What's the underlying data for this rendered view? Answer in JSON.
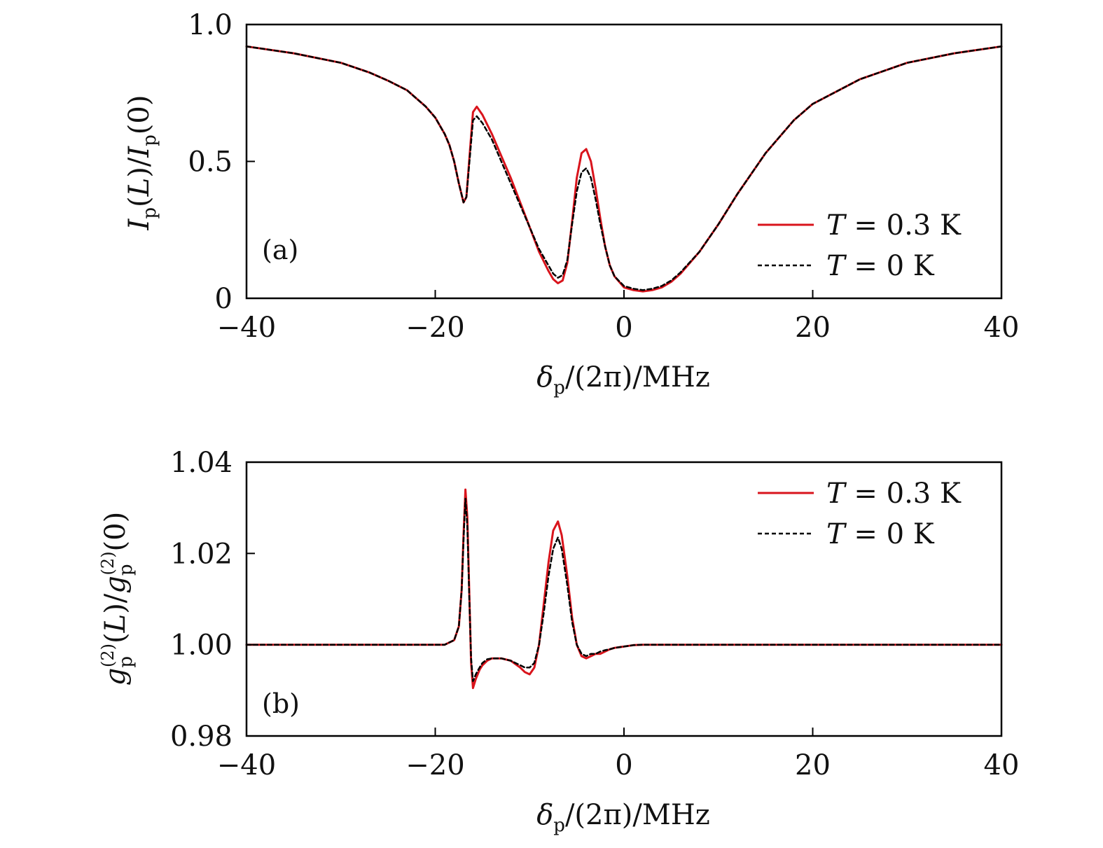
{
  "colors": {
    "hot": "#d9141c",
    "cold": "#000000",
    "axis": "#000000"
  },
  "chart_data": [
    {
      "type": "line",
      "panel_label": "(a)",
      "xlabel": "δp/(2π)/MHz",
      "ylabel": "Ip(L)/Ip(0)",
      "xlim": [
        -40,
        40
      ],
      "ylim": [
        0,
        1.0
      ],
      "xticks": [
        -40,
        -20,
        0,
        20,
        40
      ],
      "xtick_labels": [
        "−40",
        "−20",
        "0",
        "20",
        "40"
      ],
      "yticks": [
        0,
        0.5,
        1.0
      ],
      "ytick_labels": [
        "0",
        "0.5",
        "1.0"
      ],
      "legend": {
        "position": "lower-right",
        "entries": [
          "T = 0.3 K",
          "T = 0 K"
        ]
      },
      "series": [
        {
          "name": "T = 0.3 K",
          "color": "#d9141c",
          "dash": "solid",
          "x": [
            -40,
            -35,
            -30,
            -27,
            -25,
            -23,
            -21,
            -20,
            -19,
            -18.5,
            -18,
            -17.5,
            -17,
            -16.7,
            -16.3,
            -16,
            -15.6,
            -15,
            -14,
            -13,
            -12,
            -11,
            -10,
            -9,
            -8,
            -7.5,
            -7,
            -6.5,
            -6,
            -5.5,
            -5,
            -4.5,
            -4,
            -3.5,
            -3,
            -2.5,
            -2,
            -1.5,
            -1,
            0,
            1,
            2,
            3,
            4,
            5,
            6,
            8,
            10,
            12,
            15,
            18,
            20,
            25,
            30,
            35,
            40
          ],
          "y": [
            0.92,
            0.895,
            0.86,
            0.825,
            0.795,
            0.76,
            0.7,
            0.66,
            0.6,
            0.56,
            0.5,
            0.42,
            0.35,
            0.37,
            0.55,
            0.68,
            0.7,
            0.67,
            0.6,
            0.52,
            0.44,
            0.35,
            0.26,
            0.17,
            0.1,
            0.07,
            0.055,
            0.065,
            0.13,
            0.28,
            0.44,
            0.53,
            0.545,
            0.5,
            0.4,
            0.29,
            0.19,
            0.12,
            0.08,
            0.04,
            0.03,
            0.025,
            0.03,
            0.04,
            0.06,
            0.09,
            0.17,
            0.27,
            0.38,
            0.53,
            0.65,
            0.71,
            0.8,
            0.86,
            0.895,
            0.92
          ]
        },
        {
          "name": "T = 0 K",
          "color": "#000000",
          "dash": "dashed",
          "x": [
            -40,
            -35,
            -30,
            -27,
            -25,
            -23,
            -21,
            -20,
            -19,
            -18.5,
            -18,
            -17.5,
            -17,
            -16.7,
            -16.3,
            -16,
            -15.6,
            -15,
            -14,
            -13,
            -12,
            -11,
            -10,
            -9,
            -8,
            -7.5,
            -7,
            -6.5,
            -6,
            -5.5,
            -5,
            -4.5,
            -4,
            -3.5,
            -3,
            -2.5,
            -2,
            -1.5,
            -1,
            0,
            1,
            2,
            3,
            4,
            5,
            6,
            8,
            10,
            12,
            15,
            18,
            20,
            25,
            30,
            35,
            40
          ],
          "y": [
            0.92,
            0.895,
            0.86,
            0.825,
            0.795,
            0.76,
            0.7,
            0.66,
            0.6,
            0.56,
            0.5,
            0.42,
            0.35,
            0.37,
            0.53,
            0.65,
            0.665,
            0.64,
            0.58,
            0.5,
            0.42,
            0.34,
            0.26,
            0.18,
            0.12,
            0.09,
            0.075,
            0.085,
            0.14,
            0.27,
            0.39,
            0.46,
            0.475,
            0.44,
            0.36,
            0.27,
            0.19,
            0.12,
            0.08,
            0.045,
            0.035,
            0.03,
            0.035,
            0.045,
            0.065,
            0.095,
            0.17,
            0.27,
            0.38,
            0.53,
            0.65,
            0.71,
            0.8,
            0.86,
            0.895,
            0.92
          ]
        }
      ]
    },
    {
      "type": "line",
      "panel_label": "(b)",
      "xlabel": "δp/(2π)/MHz",
      "ylabel": "gp(2)(L)/gp(2)(0)",
      "xlim": [
        -40,
        40
      ],
      "ylim": [
        0.98,
        1.04
      ],
      "xticks": [
        -40,
        -20,
        0,
        20,
        40
      ],
      "xtick_labels": [
        "−40",
        "−20",
        "0",
        "20",
        "40"
      ],
      "yticks": [
        0.98,
        1.0,
        1.02,
        1.04
      ],
      "ytick_labels": [
        "0.98",
        "1.00",
        "1.02",
        "1.04"
      ],
      "legend": {
        "position": "top-right",
        "entries": [
          "T = 0.3 K",
          "T = 0 K"
        ]
      },
      "series": [
        {
          "name": "T = 0.3 K",
          "color": "#d9141c",
          "dash": "solid",
          "x": [
            -40,
            -30,
            -20,
            -19,
            -18,
            -17.5,
            -17.2,
            -17,
            -16.8,
            -16.6,
            -16.4,
            -16.2,
            -16,
            -15.7,
            -15.3,
            -15,
            -14.5,
            -14,
            -13,
            -12,
            -11,
            -10.5,
            -10,
            -9.5,
            -9,
            -8.5,
            -8,
            -7.5,
            -7,
            -6.6,
            -6,
            -5.5,
            -5,
            -4.5,
            -4,
            -3.5,
            -3,
            -2.5,
            -2,
            -1.5,
            -1,
            0,
            1,
            2,
            3,
            5,
            10,
            20,
            30,
            40
          ],
          "y": [
            1.0,
            1.0,
            1.0,
            1.0,
            1.001,
            1.004,
            1.012,
            1.024,
            1.034,
            1.028,
            1.012,
            0.996,
            0.9905,
            0.9925,
            0.9945,
            0.9955,
            0.9965,
            0.997,
            0.997,
            0.9965,
            0.995,
            0.994,
            0.9935,
            0.995,
            1.0,
            1.009,
            1.018,
            1.025,
            1.027,
            1.024,
            1.015,
            1.006,
            1.0,
            0.9975,
            0.997,
            0.9975,
            0.998,
            0.998,
            0.9985,
            0.999,
            0.9993,
            0.9996,
            0.9999,
            1.0,
            1.0,
            1.0,
            1.0,
            1.0,
            1.0,
            1.0
          ]
        },
        {
          "name": "T = 0 K",
          "color": "#000000",
          "dash": "dashed",
          "x": [
            -40,
            -30,
            -20,
            -19,
            -18,
            -17.5,
            -17.2,
            -17,
            -16.8,
            -16.6,
            -16.4,
            -16.2,
            -16,
            -15.7,
            -15.3,
            -15,
            -14.5,
            -14,
            -13,
            -12,
            -11,
            -10.5,
            -10,
            -9.5,
            -9,
            -8.5,
            -8,
            -7.5,
            -7,
            -6.6,
            -6,
            -5.5,
            -5,
            -4.5,
            -4,
            -3.5,
            -3,
            -2.5,
            -2,
            -1.5,
            -1,
            0,
            1,
            2,
            3,
            5,
            10,
            20,
            30,
            40
          ],
          "y": [
            1.0,
            1.0,
            1.0,
            1.0,
            1.001,
            1.004,
            1.012,
            1.023,
            1.032,
            1.026,
            1.011,
            0.997,
            0.992,
            0.9935,
            0.995,
            0.996,
            0.9968,
            0.997,
            0.997,
            0.9965,
            0.9955,
            0.995,
            0.995,
            0.996,
            1.0,
            1.007,
            1.015,
            1.021,
            1.0235,
            1.021,
            1.013,
            1.005,
            1.0,
            0.998,
            0.9975,
            0.998,
            0.998,
            0.9985,
            0.9988,
            0.999,
            0.9993,
            0.9996,
            0.9999,
            1.0,
            1.0,
            1.0,
            1.0,
            1.0,
            1.0,
            1.0
          ]
        }
      ]
    }
  ]
}
